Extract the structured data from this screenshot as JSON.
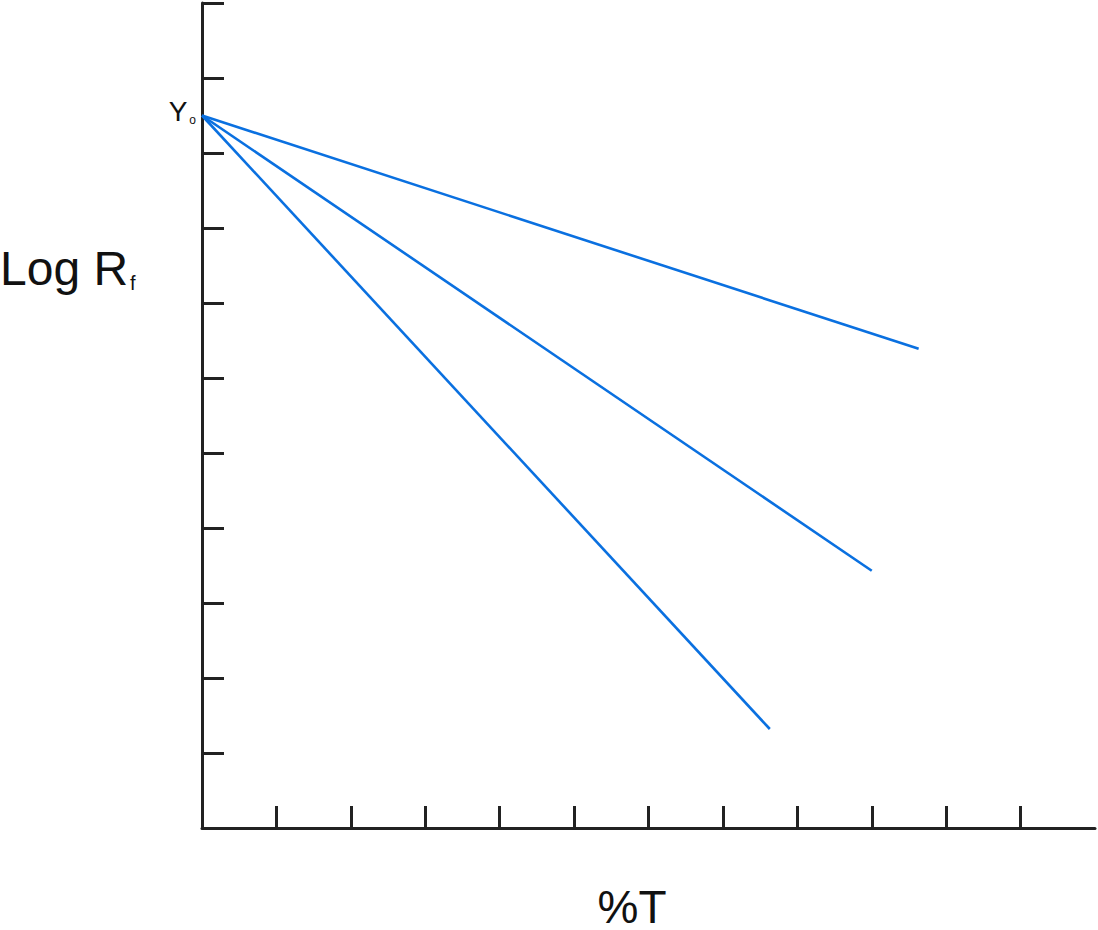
{
  "chart_data": {
    "type": "line",
    "x_label": "%T",
    "y_label": "Log Rf",
    "annotations": [
      {
        "text": "Yo",
        "x": 0,
        "y": 9.5
      }
    ],
    "series": [
      {
        "color": "#0a70e0",
        "x": [
          0,
          9.63
        ],
        "values": [
          9.5,
          6.39
        ]
      },
      {
        "color": "#0a70e0",
        "x": [
          0,
          9.0
        ],
        "values": [
          9.5,
          3.43
        ]
      },
      {
        "color": "#0a70e0",
        "x": [
          0,
          7.63
        ],
        "values": [
          9.5,
          1.32
        ]
      }
    ],
    "xlim": [
      0,
      12
    ],
    "xticks": [
      0,
      1,
      2,
      3,
      4,
      5,
      6,
      7,
      8,
      9,
      10,
      11
    ],
    "ylim": [
      0,
      11
    ],
    "yticks": [
      0,
      1,
      2,
      3,
      4,
      5,
      6,
      7,
      8,
      9,
      10,
      11
    ],
    "grid": false,
    "tick_labels": false,
    "marker": "none",
    "line_style": "solid"
  }
}
